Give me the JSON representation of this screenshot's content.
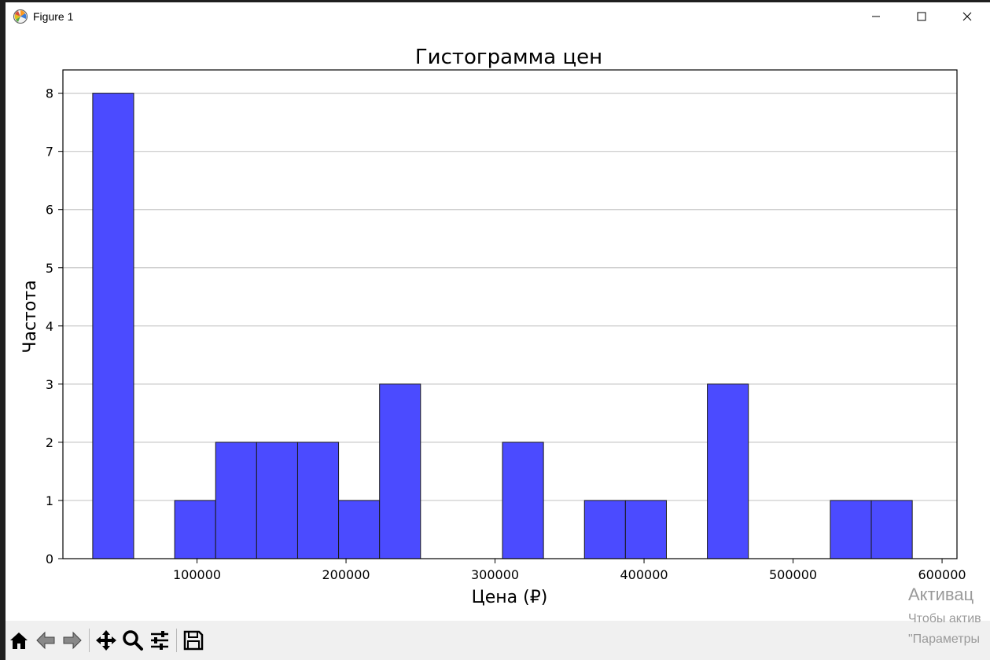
{
  "window": {
    "title": "Figure 1",
    "icon": "matplotlib-logo-icon",
    "controls": [
      "minimize-icon",
      "maximize-icon",
      "close-icon"
    ]
  },
  "chart_data": {
    "type": "bar",
    "title": "Гистограмма цен",
    "xlabel": "Цена (₽)",
    "ylabel": "Частота",
    "bin_start": 30000,
    "bin_width": 27500,
    "counts": [
      8,
      0,
      1,
      2,
      2,
      2,
      1,
      3,
      0,
      0,
      2,
      0,
      1,
      1,
      0,
      3,
      0,
      0,
      1,
      1
    ],
    "xlim": [
      10000,
      610000
    ],
    "ylim": [
      0,
      8.4
    ],
    "xticks": [
      100000,
      200000,
      300000,
      400000,
      500000,
      600000
    ],
    "xtick_labels": [
      "100000",
      "200000",
      "300000",
      "400000",
      "500000",
      "600000"
    ],
    "yticks": [
      0,
      1,
      2,
      3,
      4,
      5,
      6,
      7,
      8
    ],
    "ytick_labels": [
      "0",
      "1",
      "2",
      "3",
      "4",
      "5",
      "6",
      "7",
      "8"
    ],
    "grid": "y",
    "bar_color": "#4b4bff",
    "edge_color": "#1a1a1a",
    "grid_color": "#c8c8c8"
  },
  "toolbar": {
    "buttons": [
      "home-icon",
      "back-icon",
      "forward-icon",
      "pan-icon",
      "zoom-icon",
      "configure-subplots-icon",
      "save-icon"
    ]
  },
  "watermark": {
    "line1": "Активац",
    "line2": "Чтобы актив",
    "line3": "\"Параметры"
  }
}
